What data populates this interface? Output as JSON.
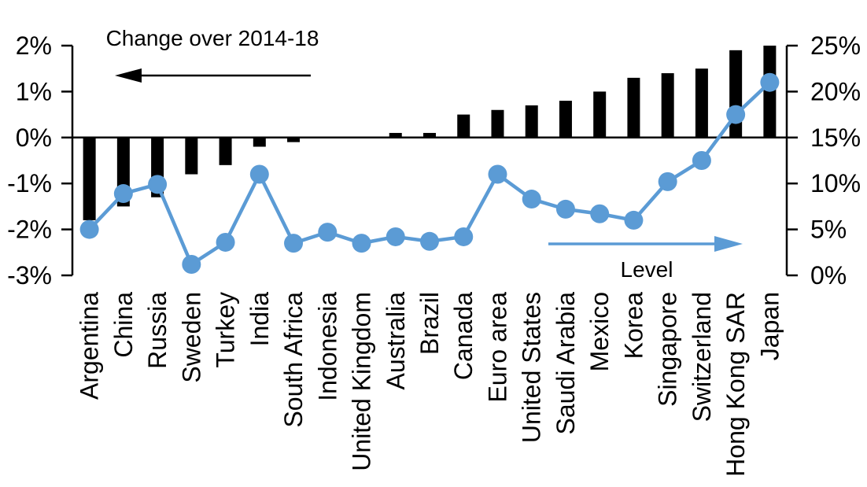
{
  "chart_data": {
    "type": "bar",
    "subtype": "bar-line-combo-dual-axis",
    "categories": [
      "Argentina",
      "China",
      "Russia",
      "Sweden",
      "Turkey",
      "India",
      "South Africa",
      "Indonesia",
      "United Kingdom",
      "Australia",
      "Brazil",
      "Canada",
      "Euro area",
      "United States",
      "Saudi Arabia",
      "Mexico",
      "Korea",
      "Singapore",
      "Switzerland",
      "Hong Kong SAR",
      "Japan"
    ],
    "series": [
      {
        "name": "Change over 2014-18",
        "type": "bar",
        "axis": "left",
        "color": "#000000",
        "values": [
          -1.8,
          -1.5,
          -1.3,
          -0.8,
          -0.6,
          -0.2,
          -0.1,
          0.0,
          0.0,
          0.1,
          0.1,
          0.5,
          0.6,
          0.7,
          0.8,
          1.0,
          1.3,
          1.4,
          1.5,
          1.9,
          2.0
        ]
      },
      {
        "name": "Level",
        "type": "line",
        "axis": "right",
        "color": "#5B9BD5",
        "values": [
          5.0,
          8.9,
          9.9,
          1.2,
          3.6,
          11.0,
          3.5,
          4.7,
          3.5,
          4.2,
          3.7,
          4.2,
          11.0,
          8.3,
          7.2,
          6.7,
          6.0,
          10.2,
          12.5,
          17.5,
          21.0
        ]
      }
    ],
    "left_axis": {
      "min": -3,
      "max": 2,
      "tick_values": [
        2,
        1,
        0,
        -1,
        -2,
        -3
      ],
      "tick_labels": [
        "2%",
        "1%",
        "0%",
        "-1%",
        "-2%",
        "-3%"
      ]
    },
    "right_axis": {
      "min": 0,
      "max": 25,
      "tick_values": [
        25,
        20,
        15,
        10,
        5,
        0
      ],
      "tick_labels": [
        "25%",
        "20%",
        "15%",
        "10%",
        "5%",
        "0%"
      ]
    },
    "annotations": {
      "change_label": "Change over 2014-18",
      "level_label": "Level"
    },
    "grid": "off",
    "legend_position": "in-plot arrows (left arrow = bars / left axis, right arrow = line / right axis)"
  }
}
